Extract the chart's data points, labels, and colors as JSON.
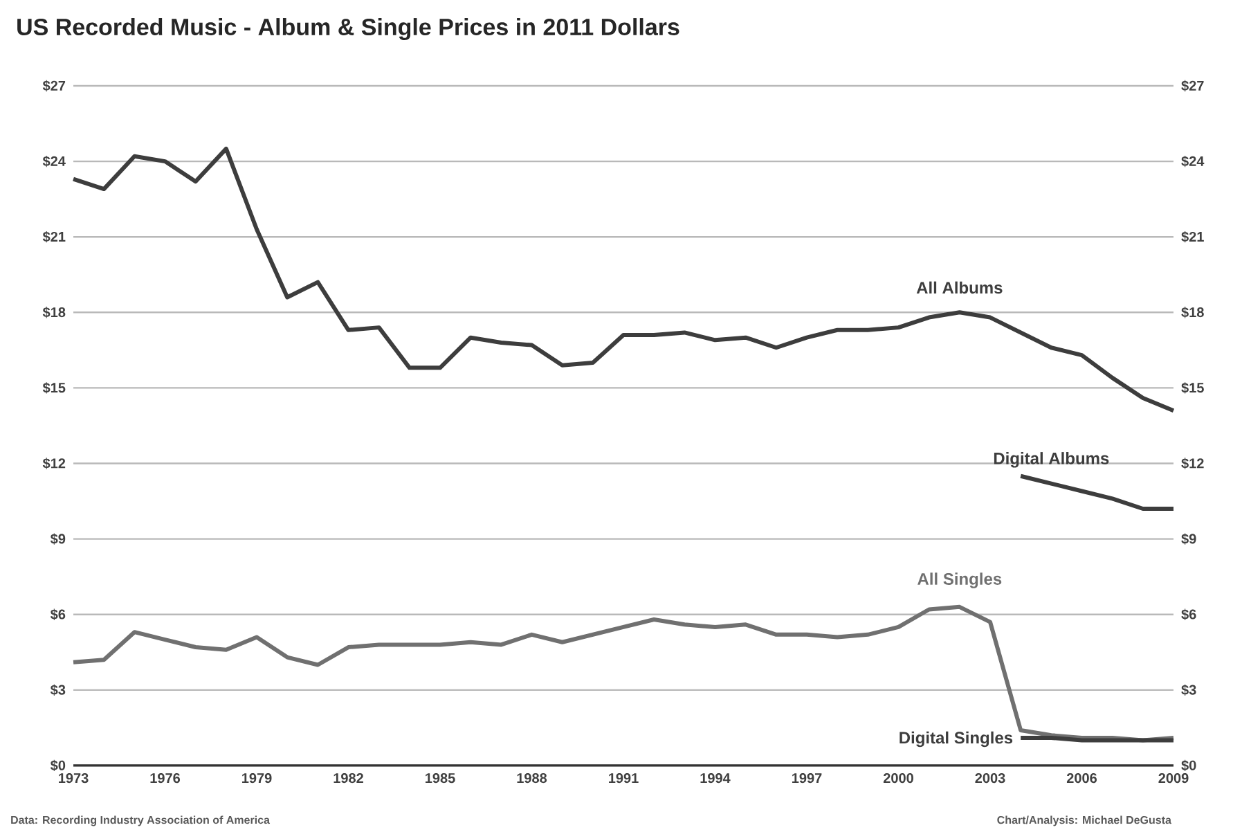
{
  "chart_data": {
    "type": "line",
    "title": "US Recorded Music - Album & Single Prices in 2011 Dollars",
    "x": [
      1973,
      1974,
      1975,
      1976,
      1977,
      1978,
      1979,
      1980,
      1981,
      1982,
      1983,
      1984,
      1985,
      1986,
      1987,
      1988,
      1989,
      1990,
      1991,
      1992,
      1993,
      1994,
      1995,
      1996,
      1997,
      1998,
      1999,
      2000,
      2001,
      2002,
      2003,
      2004,
      2005,
      2006,
      2007,
      2008,
      2009
    ],
    "series": [
      {
        "name": "All Albums",
        "color": "#3d3d3d",
        "values": [
          23.3,
          22.9,
          24.2,
          24.0,
          23.2,
          24.5,
          21.3,
          18.6,
          19.2,
          17.3,
          17.4,
          15.8,
          15.8,
          17.0,
          16.8,
          16.7,
          15.9,
          16.0,
          17.1,
          17.1,
          17.2,
          16.9,
          17.0,
          16.6,
          17.0,
          17.3,
          17.3,
          17.4,
          17.8,
          18.0,
          17.8,
          17.2,
          16.6,
          16.3,
          15.4,
          14.6,
          14.1
        ]
      },
      {
        "name": "Digital Albums",
        "color": "#3d3d3d",
        "x": [
          2004,
          2005,
          2006,
          2007,
          2008,
          2009
        ],
        "values": [
          11.5,
          11.2,
          10.9,
          10.6,
          10.2,
          10.2
        ]
      },
      {
        "name": "All Singles",
        "color": "#707070",
        "values": [
          4.1,
          4.2,
          5.3,
          5.0,
          4.7,
          4.6,
          5.1,
          4.3,
          4.0,
          4.7,
          4.8,
          4.8,
          4.8,
          4.9,
          4.8,
          5.2,
          4.9,
          5.2,
          5.5,
          5.8,
          5.6,
          5.5,
          5.6,
          5.2,
          5.2,
          5.1,
          5.2,
          5.5,
          6.2,
          6.3,
          5.7,
          1.4,
          1.2,
          1.1,
          1.1,
          1.0,
          1.1
        ]
      },
      {
        "name": "Digital Singles",
        "color": "#3d3d3d",
        "x": [
          2004,
          2005,
          2006,
          2007,
          2008,
          2009
        ],
        "values": [
          1.1,
          1.1,
          1.0,
          1.0,
          1.0,
          1.0
        ]
      }
    ],
    "xlim": [
      1973,
      2009
    ],
    "xticks": [
      1973,
      1976,
      1979,
      1982,
      1985,
      1988,
      1991,
      1994,
      1997,
      2000,
      2003,
      2006,
      2009
    ],
    "ylim": [
      0,
      27
    ],
    "yticks": [
      {
        "value": 0,
        "label": "$0"
      },
      {
        "value": 3,
        "label": "$3"
      },
      {
        "value": 6,
        "label": "$6"
      },
      {
        "value": 9,
        "label": "$9"
      },
      {
        "value": 12,
        "label": "$12"
      },
      {
        "value": 15,
        "label": "$15"
      },
      {
        "value": 18,
        "label": "$18"
      },
      {
        "value": 21,
        "label": "$21"
      },
      {
        "value": 24,
        "label": "$24"
      },
      {
        "value": 27,
        "label": "$27"
      }
    ],
    "y2lim": [
      0,
      27
    ],
    "y2ticks": [
      {
        "value": 0,
        "label": "$0"
      },
      {
        "value": 3,
        "label": "$3"
      },
      {
        "value": 6,
        "label": "$6"
      },
      {
        "value": 9,
        "label": "$9"
      },
      {
        "value": 12,
        "label": "$12"
      },
      {
        "value": 15,
        "label": "$15"
      },
      {
        "value": 18,
        "label": "$18"
      },
      {
        "value": 21,
        "label": "$21"
      },
      {
        "value": 24,
        "label": "$24"
      },
      {
        "value": 27,
        "label": "$27"
      }
    ],
    "grid": "y",
    "marker": "none",
    "line_style": "solid",
    "annotations": [
      "Data: Recording Industry Association of America",
      "Chart/Analysis: Michael DeGusta"
    ]
  }
}
